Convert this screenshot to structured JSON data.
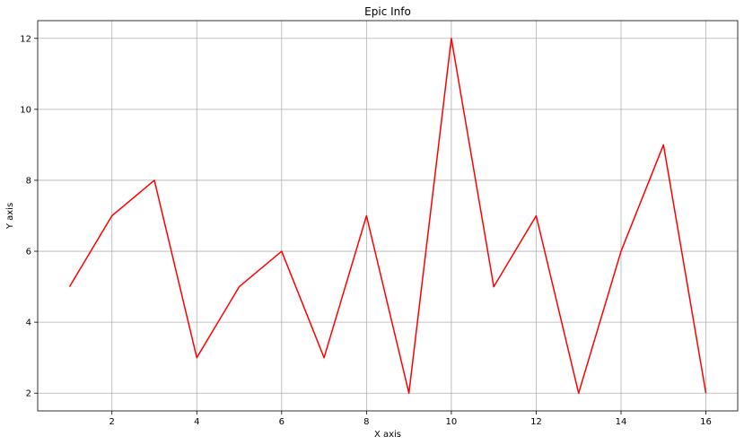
{
  "chart_data": {
    "type": "line",
    "title": "Epic Info",
    "xlabel": "X axis",
    "ylabel": "Y axis",
    "xlim": [
      0.25,
      16.75
    ],
    "ylim": [
      1.5,
      12.5
    ],
    "x_ticks": [
      2,
      4,
      6,
      8,
      10,
      12,
      14,
      16
    ],
    "y_ticks": [
      2,
      4,
      6,
      8,
      10,
      12
    ],
    "grid": true,
    "series": [
      {
        "color": "#ff0000",
        "x": [
          1,
          2,
          3,
          4,
          5,
          6,
          7,
          8,
          9,
          10,
          11,
          12,
          13,
          14,
          15,
          16
        ],
        "y": [
          5,
          7,
          8,
          3,
          5,
          6,
          3,
          7,
          2,
          12,
          5,
          7,
          2,
          6,
          9,
          2
        ]
      }
    ]
  }
}
